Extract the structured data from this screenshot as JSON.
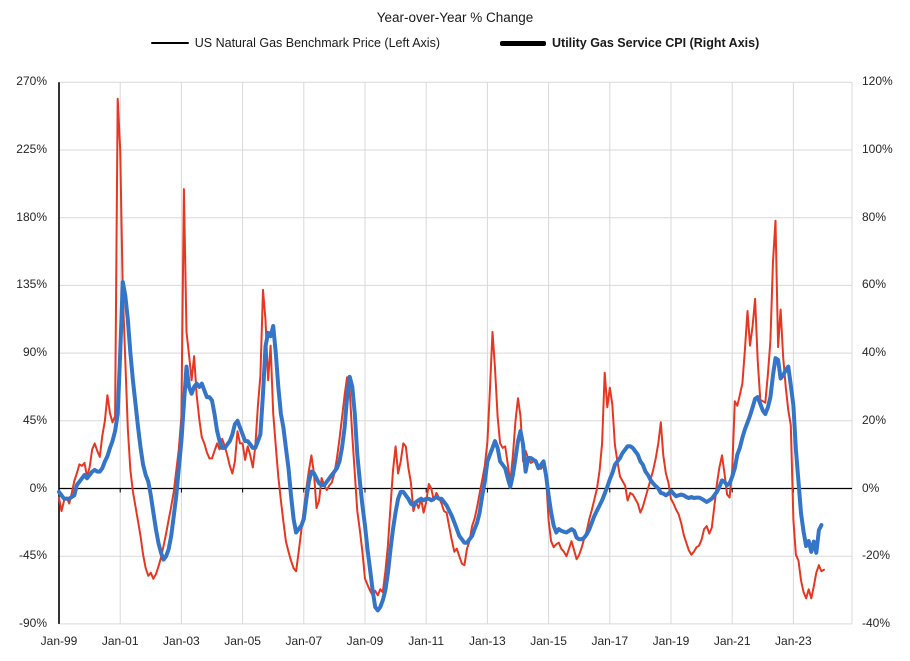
{
  "chart_data": {
    "type": "line",
    "title": "Year-over-Year % Change",
    "x_start_label": "Jan-99",
    "x_ticks": [
      "Jan-99",
      "Jan-01",
      "Jan-03",
      "Jan-05",
      "Jan-07",
      "Jan-09",
      "Jan-11",
      "Jan-13",
      "Jan-15",
      "Jan-17",
      "Jan-19",
      "Jan-21",
      "Jan-23"
    ],
    "left_axis": {
      "ticks": [
        "270%",
        "225%",
        "180%",
        "135%",
        "90%",
        "45%",
        "0%",
        "-45%",
        "-90%"
      ],
      "min": -90,
      "max": 270
    },
    "right_axis": {
      "ticks": [
        "120%",
        "100%",
        "80%",
        "60%",
        "40%",
        "20%",
        "0%",
        "-20%",
        "-40%"
      ],
      "min": -40,
      "max": 120
    },
    "colors": {
      "red_series": "#e53821",
      "blue_series": "#3575c8",
      "grid": "#d9d9d9",
      "axis": "#000000",
      "text": "#262626"
    },
    "legend_position": "top",
    "grid": true,
    "series": [
      {
        "name": "US Natural Gas Benchmark Price",
        "legend_label": "US Natural Gas Benchmark Price (Left Axis)",
        "axis": "left",
        "color": "#e53821",
        "width": 2,
        "values": [
          -6,
          -15,
          -8,
          -6,
          -10,
          -3,
          5,
          10,
          16,
          15,
          17,
          8,
          14,
          26,
          30,
          25,
          21,
          35,
          45,
          62,
          50,
          44,
          48,
          259,
          225,
          130,
          85,
          40,
          12,
          -2,
          -12,
          -22,
          -32,
          -44,
          -53,
          -58,
          -56,
          -60,
          -57,
          -52,
          -46,
          -38,
          -30,
          -21,
          -12,
          -2,
          12,
          26,
          48,
          199,
          104,
          89,
          72,
          88,
          62,
          46,
          34,
          30,
          24,
          20,
          20,
          25,
          30,
          26,
          33,
          28,
          22,
          15,
          10,
          18,
          38,
          30,
          30,
          19,
          28,
          22,
          14,
          28,
          55,
          75,
          132,
          112,
          72,
          95,
          50,
          28,
          8,
          -8,
          -22,
          -35,
          -42,
          -48,
          -53,
          -55,
          -42,
          -28,
          -14,
          0,
          12,
          22,
          10,
          -13,
          -8,
          7,
          2,
          -1,
          2,
          4,
          10,
          20,
          33,
          47,
          62,
          74,
          65,
          35,
          10,
          -15,
          -28,
          -42,
          -60,
          -64,
          -68,
          -71,
          -68,
          -71,
          -67,
          -69,
          -55,
          -38,
          -12,
          12,
          28,
          10,
          18,
          30,
          28,
          14,
          4,
          -15,
          -9,
          -13,
          -7,
          -16,
          -9,
          3,
          0,
          -8,
          -3,
          -6,
          -10,
          -15,
          -16,
          -25,
          -34,
          -42,
          -40,
          -45,
          -50,
          -51,
          -40,
          -35,
          -25,
          -20,
          -12,
          -3,
          6,
          15,
          31,
          65,
          104,
          80,
          48,
          30,
          27,
          28,
          16,
          4,
          22,
          45,
          60,
          48,
          18,
          25,
          20,
          17,
          18,
          19,
          15,
          13,
          16,
          8,
          -21,
          -35,
          -39,
          -37,
          -36,
          -40,
          -42,
          -45,
          -40,
          -35,
          -41,
          -47,
          -44,
          -39,
          -33,
          -28,
          -20,
          -14,
          -7,
          0,
          12,
          30,
          77,
          54,
          67,
          56,
          29,
          18,
          8,
          5,
          2,
          -8,
          -3,
          -4,
          -7,
          -10,
          -16,
          -12,
          -6,
          0,
          6,
          12,
          20,
          30,
          44,
          22,
          10,
          4,
          -7,
          -10,
          -14,
          -17,
          -23,
          -31,
          -36,
          -41,
          -44,
          -42,
          -39,
          -38,
          -34,
          -27,
          -25,
          -30,
          -26,
          -12,
          3,
          14,
          22,
          10,
          -4,
          -6,
          12,
          58,
          55,
          62,
          70,
          92,
          118,
          95,
          108,
          126,
          85,
          59,
          58,
          57,
          76,
          98,
          151,
          178,
          94,
          119,
          87,
          67,
          52,
          42,
          -21,
          -44,
          -48,
          -61,
          -69,
          -73,
          -67,
          -73,
          -65,
          -56,
          -51,
          -55,
          -54
        ]
      },
      {
        "name": "Utility Gas Service CPI",
        "legend_label": "Utility Gas Service CPI (Right Axis)",
        "axis": "right",
        "color": "#3575c8",
        "width": 4,
        "values": [
          -1,
          -2,
          -3,
          -3,
          -3,
          -2.5,
          -2,
          1,
          2,
          3,
          4,
          3,
          4,
          5,
          5.5,
          5,
          5,
          6,
          8,
          9.5,
          12,
          14,
          17,
          22,
          40,
          61,
          57,
          50,
          40,
          32,
          25,
          18,
          12,
          7,
          4,
          2,
          -2,
          -7,
          -12,
          -16,
          -19,
          -21,
          -20,
          -18,
          -14,
          -8,
          -2,
          6,
          14,
          25,
          36,
          30,
          28,
          30,
          31,
          30,
          31,
          29,
          27,
          27,
          26,
          22,
          17,
          14,
          12,
          12,
          13,
          14,
          16,
          19,
          20,
          18,
          16,
          14,
          14,
          13,
          12,
          12,
          14,
          16,
          28,
          42,
          46,
          45,
          48,
          40,
          30,
          22,
          18,
          12,
          6,
          -2,
          -9,
          -13,
          -12,
          -11,
          -9,
          -3,
          2,
          5,
          4.5,
          3,
          1.5,
          1,
          1,
          2,
          3,
          4,
          5,
          6,
          8,
          12,
          18,
          27,
          33,
          30,
          22,
          10,
          2,
          -5,
          -11,
          -18,
          -24,
          -30,
          -35,
          -36,
          -35,
          -33,
          -30,
          -25,
          -18,
          -12,
          -7,
          -3,
          -1,
          -1,
          -2,
          -3,
          -4.5,
          -5,
          -4,
          -3.5,
          -3,
          -3.5,
          -3,
          -3,
          -3.5,
          -3,
          -2.5,
          -3,
          -3,
          -4,
          -5,
          -6.5,
          -8,
          -10,
          -12,
          -14,
          -15,
          -16,
          -16,
          -15,
          -14,
          -12,
          -10,
          -7,
          -2,
          2,
          8,
          10,
          12,
          14,
          12,
          8,
          7,
          6,
          3,
          0.5,
          4,
          9,
          14,
          17,
          13,
          5,
          9,
          9,
          8.5,
          8,
          6,
          7,
          8,
          4,
          -2,
          -7,
          -11,
          -13,
          -12,
          -12.5,
          -12.8,
          -13,
          -12.5,
          -12,
          -12.5,
          -14.5,
          -15,
          -15,
          -14.5,
          -13.5,
          -12,
          -10,
          -8,
          -6.5,
          -5,
          -3.5,
          -1.5,
          0.5,
          2.7,
          4.5,
          7,
          8,
          9,
          10.5,
          11.5,
          12.5,
          12.5,
          12,
          11,
          10,
          8,
          7,
          5,
          4,
          2.5,
          1.5,
          0.7,
          0,
          -1.3,
          -1.5,
          -2,
          -1.5,
          -0.7,
          -1.5,
          -2.3,
          -2,
          -1.8,
          -2,
          -2.5,
          -2.8,
          -2.5,
          -2.8,
          -2.7,
          -2.7,
          -3,
          -3.5,
          -4,
          -3.5,
          -3,
          -2,
          -1,
          0.5,
          2.4,
          2,
          1,
          1.5,
          3.5,
          6,
          10,
          12,
          15,
          17.5,
          19.5,
          21.5,
          24,
          26.5,
          27,
          25,
          23,
          22,
          24,
          27,
          33.5,
          38.5,
          38,
          32.5,
          33.5,
          35,
          36,
          30.5,
          24.5,
          11.5,
          2,
          -7.3,
          -12.8,
          -17,
          -15.5,
          -18.7,
          -15.7,
          -19,
          -12.3,
          -10.8
        ]
      }
    ]
  }
}
